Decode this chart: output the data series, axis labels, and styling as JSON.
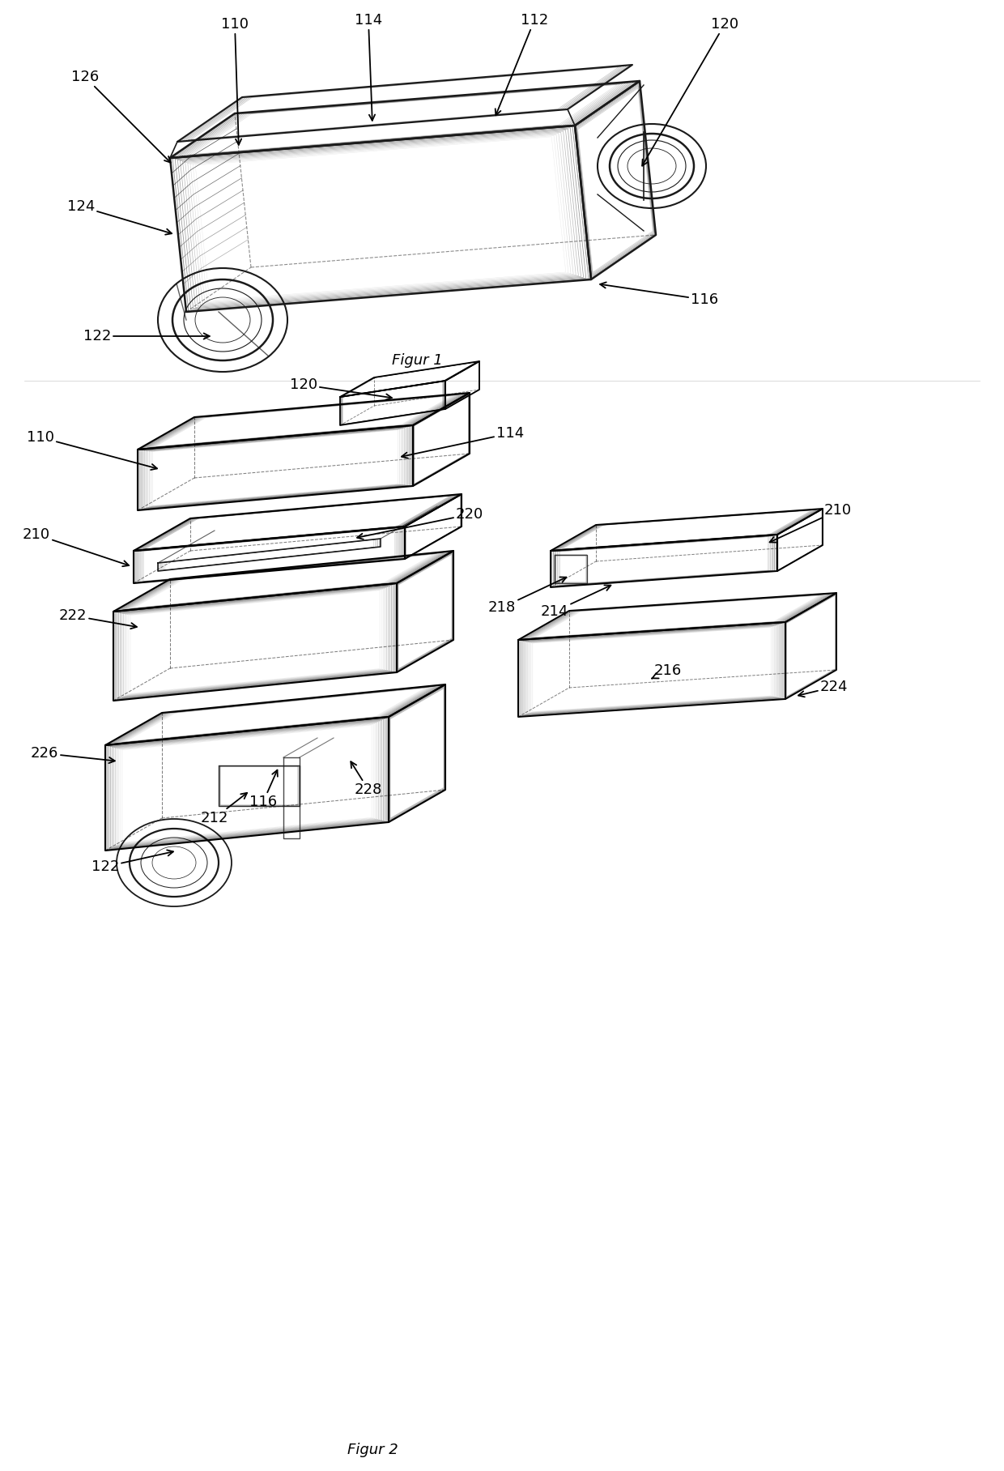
{
  "fig1_label": "Figur 1",
  "fig2_label": "Figur 2",
  "background_color": "#ffffff",
  "line_color": "#1a1a1a",
  "label_fontsize": 13,
  "fig_label_fontsize": 13
}
